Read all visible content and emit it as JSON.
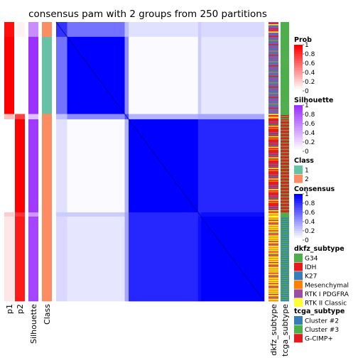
{
  "chart_data": {
    "type": "heatmap",
    "title": "consensus pam with 2 groups from 250 partitions",
    "column_labels": [
      "p1",
      "p2",
      "Silhouette",
      "Class"
    ],
    "right_labels": [
      "dkfz_subtype",
      "tcga_subtype"
    ],
    "block_sizes": [
      14,
      73,
      5,
      88,
      4,
      80
    ],
    "block_class": [
      2,
      1,
      2,
      2,
      2,
      2
    ],
    "block_p1": [
      0.95,
      1.0,
      0.25,
      0.0,
      0.2,
      0.1
    ],
    "block_p2": [
      0.05,
      0.0,
      0.75,
      1.0,
      0.8,
      0.9
    ],
    "block_silhouette": [
      0.55,
      1.0,
      0.3,
      0.95,
      0.5,
      0.9
    ],
    "consensus_blocks": [
      [
        0.8,
        0.55,
        0.25,
        0.12,
        0.2,
        0.15
      ],
      [
        0.55,
        1.0,
        0.45,
        0.02,
        0.2,
        0.1
      ],
      [
        0.25,
        0.45,
        0.7,
        0.3,
        0.35,
        0.35
      ],
      [
        0.12,
        0.02,
        0.3,
        1.0,
        0.85,
        0.85
      ],
      [
        0.2,
        0.2,
        0.35,
        0.85,
        0.9,
        0.95
      ],
      [
        0.15,
        0.1,
        0.35,
        0.85,
        0.95,
        1.0
      ]
    ],
    "dkfz_pattern": {
      "block_0": [
        "RTK I PDGFRA",
        "IDH",
        "RTK II Classic",
        "RTK I PDGFRA",
        "K27",
        "RTK I PDGFRA",
        "IDH"
      ],
      "block_1": [
        "RTK I PDGFRA",
        "K27",
        "RTK I PDGFRA",
        "G34",
        "RTK I PDGFRA",
        "K27",
        "RTK I PDGFRA",
        "IDH",
        "K27",
        "RTK I PDGFRA"
      ],
      "block_2": [
        "RTK II Classic",
        "IDH",
        "Mesenchymal"
      ],
      "block_3": [
        "IDH",
        "IDH",
        "RTK I PDGFRA",
        "IDH",
        "K27",
        "IDH",
        "RTK II Classic",
        "IDH",
        "Mesenchymal",
        "IDH"
      ],
      "block_4": [
        "Mesenchymal",
        "RTK II Classic"
      ],
      "block_5": [
        "RTK II Classic",
        "Mesenchymal",
        "RTK II Classic",
        "IDH",
        "RTK II Classic",
        "Mesenchymal",
        "RTK I PDGFRA",
        "Mesenchymal",
        "RTK II Classic",
        "Mesenchymal"
      ]
    },
    "tcga_pattern": {
      "block_0": [
        "Cluster #3"
      ],
      "block_1": [
        "Cluster #3"
      ],
      "block_2": [
        "Cluster #3",
        "G-CIMP+"
      ],
      "block_3": [
        "G-CIMP+",
        "Cluster #3",
        "G-CIMP+"
      ],
      "block_4": [
        "Cluster #3"
      ],
      "block_5": [
        "Cluster #3",
        "Cluster #2"
      ]
    },
    "legends": [
      {
        "title": "Prob",
        "type": "gradient",
        "colors": [
          "#ffffff",
          "#ff0000"
        ],
        "ticks": [
          "1",
          "0.8",
          "0.6",
          "0.4",
          "0.2",
          "0"
        ]
      },
      {
        "title": "Silhouette",
        "type": "gradient",
        "colors": [
          "#ffffff",
          "#9b30ff"
        ],
        "ticks": [
          "1",
          "0.8",
          "0.6",
          "0.4",
          "0.2",
          "0"
        ]
      },
      {
        "title": "Class",
        "type": "discrete",
        "items": [
          {
            "label": "1",
            "color": "#66c2a5"
          },
          {
            "label": "2",
            "color": "#fc8d62"
          }
        ]
      },
      {
        "title": "Consensus",
        "type": "gradient",
        "colors": [
          "#ffffff",
          "#0000ff"
        ],
        "ticks": [
          "1",
          "0.8",
          "0.6",
          "0.4",
          "0.2",
          "0"
        ]
      },
      {
        "title": "dkfz_subtype",
        "type": "discrete",
        "items": [
          {
            "label": "G34",
            "color": "#4daf4a"
          },
          {
            "label": "IDH",
            "color": "#e41a1c"
          },
          {
            "label": "K27",
            "color": "#377eb8"
          },
          {
            "label": "Mesenchymal",
            "color": "#ff7f00"
          },
          {
            "label": "RTK I PDGFRA",
            "color": "#984ea3"
          },
          {
            "label": "RTK II Classic",
            "color": "#ffff33"
          }
        ]
      },
      {
        "title": "tcga_subtype",
        "type": "discrete",
        "items": [
          {
            "label": "Cluster #2",
            "color": "#377eb8"
          },
          {
            "label": "Cluster #3",
            "color": "#4daf4a"
          },
          {
            "label": "G-CIMP+",
            "color": "#e41a1c"
          }
        ]
      }
    ]
  }
}
